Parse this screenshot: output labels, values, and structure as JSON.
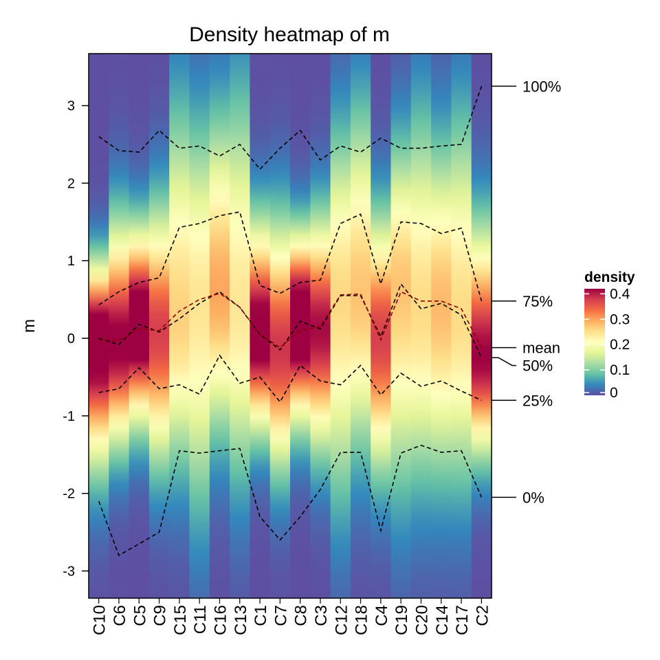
{
  "chart_data": {
    "type": "heatmap",
    "title": "Density heatmap of m",
    "ylabel": "m",
    "ylim": [
      -3.35,
      3.67
    ],
    "yticks": [
      -3,
      -2,
      -1,
      0,
      1,
      2,
      3
    ],
    "categories": [
      "C10",
      "C6",
      "C5",
      "C9",
      "C15",
      "C11",
      "C16",
      "C13",
      "C1",
      "C7",
      "C8",
      "C3",
      "C12",
      "C18",
      "C4",
      "C19",
      "C20",
      "C14",
      "C17",
      "C2"
    ],
    "stats": {
      "min": [
        -2.1,
        -2.8,
        -2.65,
        -2.5,
        -1.45,
        -1.48,
        -1.45,
        -1.42,
        -2.3,
        -2.6,
        -2.3,
        -1.95,
        -1.47,
        -1.47,
        -2.48,
        -1.48,
        -1.38,
        -1.47,
        -1.45,
        -2.05
      ],
      "q25": [
        -0.7,
        -0.65,
        -0.38,
        -0.65,
        -0.6,
        -0.72,
        -0.22,
        -0.58,
        -0.5,
        -0.82,
        -0.35,
        -0.55,
        -0.6,
        -0.35,
        -0.73,
        -0.45,
        -0.62,
        -0.55,
        -0.68,
        -0.8
      ],
      "median": [
        0,
        -0.08,
        0.18,
        0.08,
        0.25,
        0.45,
        0.6,
        0.4,
        0.05,
        -0.15,
        0.22,
        0.12,
        0.55,
        0.55,
        0.02,
        0.7,
        0.38,
        0.45,
        0.3,
        -0.25
      ],
      "mean": [
        -0.02,
        -0.03,
        0.12,
        0.1,
        0.35,
        0.5,
        0.58,
        0.4,
        0.05,
        -0.12,
        0.1,
        0.15,
        0.56,
        0.57,
        -0.02,
        0.6,
        0.48,
        0.48,
        0.38,
        -0.12
      ],
      "q75": [
        0.43,
        0.6,
        0.72,
        0.78,
        1.43,
        1.48,
        1.58,
        1.63,
        0.68,
        0.58,
        0.72,
        0.75,
        1.48,
        1.6,
        0.7,
        1.5,
        1.48,
        1.35,
        1.42,
        0.48
      ],
      "max": [
        2.6,
        2.42,
        2.4,
        2.68,
        2.45,
        2.48,
        2.35,
        2.5,
        2.18,
        2.45,
        2.68,
        2.3,
        2.48,
        2.4,
        2.58,
        2.45,
        2.45,
        2.48,
        2.5,
        3.25
      ]
    },
    "right_labels": [
      {
        "label": "100%",
        "stat": "max"
      },
      {
        "label": "75%",
        "stat": "q75"
      },
      {
        "label": "mean",
        "stat": "mean"
      },
      {
        "label": "50%",
        "stat": "median"
      },
      {
        "label": "25%",
        "stat": "q25"
      },
      {
        "label": "0%",
        "stat": "min"
      }
    ],
    "legend": {
      "title": "density",
      "ticks": [
        "0",
        "0.1",
        "0.2",
        "0.3",
        "0.4"
      ],
      "range": [
        0,
        0.42
      ],
      "colors": [
        "#5E4FA2",
        "#3288BD",
        "#66C2A5",
        "#ABDDA4",
        "#E6F598",
        "#FFFFBF",
        "#FEE08B",
        "#FDAE61",
        "#F46D43",
        "#D53E4F",
        "#9E0142"
      ]
    },
    "grid": false
  }
}
